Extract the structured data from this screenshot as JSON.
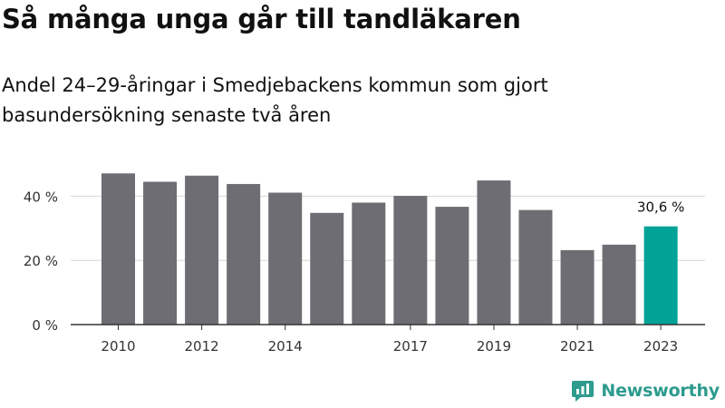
{
  "title": "Så många unga går till tandläkaren",
  "subtitle": "Andel 24–29-åringar i Smedjebackens kommun som gjort basundersökning senaste två åren",
  "brand": "Newsworthy",
  "colors": {
    "bar": "#6e6d73",
    "highlight": "#00a396",
    "grid": "#d6d6d6",
    "axis": "#333333",
    "brand": "#2d9b8e"
  },
  "chart_data": {
    "type": "bar",
    "categories": [
      "2010",
      "2011",
      "2012",
      "2013",
      "2014",
      "2015",
      "2016",
      "2017",
      "2018",
      "2019",
      "2020",
      "2021",
      "2022",
      "2023"
    ],
    "x_tick_labels": [
      "2010",
      "",
      "2012",
      "",
      "2014",
      "",
      "",
      "2017",
      "",
      "2019",
      "",
      "2021",
      "",
      "2023"
    ],
    "values": [
      47.1,
      44.5,
      46.4,
      43.8,
      41.1,
      34.8,
      38.0,
      40.1,
      36.7,
      44.9,
      35.7,
      23.2,
      24.9,
      30.6
    ],
    "highlight_index": 13,
    "data_labels": [
      {
        "index": 13,
        "text": "30,6 %"
      }
    ],
    "y_ticks": [
      {
        "value": 0,
        "label": "0 %"
      },
      {
        "value": 20,
        "label": "20 %"
      },
      {
        "value": 40,
        "label": "40 %"
      }
    ],
    "ylim": [
      0,
      50
    ],
    "grid": true,
    "legend": false
  }
}
